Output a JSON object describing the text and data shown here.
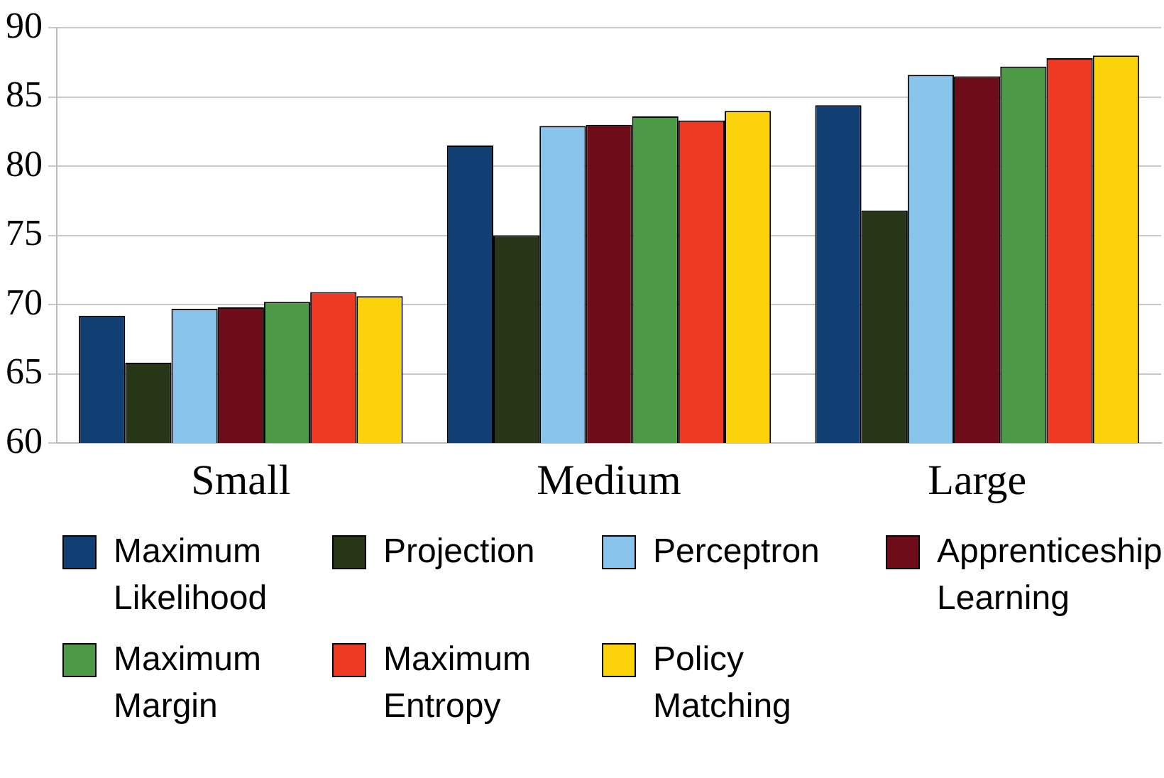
{
  "chart_data": {
    "type": "bar",
    "categories": [
      "Small",
      "Medium",
      "Large"
    ],
    "series": [
      {
        "name": "Maximum Likelihood",
        "color": "#123f73",
        "values": [
          69.2,
          81.5,
          84.4
        ]
      },
      {
        "name": "Projection",
        "color": "#283618",
        "values": [
          65.8,
          75.0,
          76.8
        ]
      },
      {
        "name": "Perceptron",
        "color": "#89c4ec",
        "values": [
          69.7,
          82.9,
          86.6
        ]
      },
      {
        "name": "Apprenticeship Learning",
        "color": "#6e0c19",
        "values": [
          69.8,
          83.0,
          86.5
        ]
      },
      {
        "name": "Maximum Margin",
        "color": "#4c9a45",
        "values": [
          70.2,
          83.6,
          87.2
        ]
      },
      {
        "name": "Maximum Entropy",
        "color": "#ee3a23",
        "values": [
          70.9,
          83.3,
          87.8
        ]
      },
      {
        "name": "Policy Matching",
        "color": "#fcd20a",
        "values": [
          70.6,
          84.0,
          88.0
        ]
      }
    ],
    "ylim": [
      60,
      90
    ],
    "yticks": [
      60,
      65,
      70,
      75,
      80,
      85,
      90
    ],
    "grid": "y",
    "legend": "bottom"
  }
}
